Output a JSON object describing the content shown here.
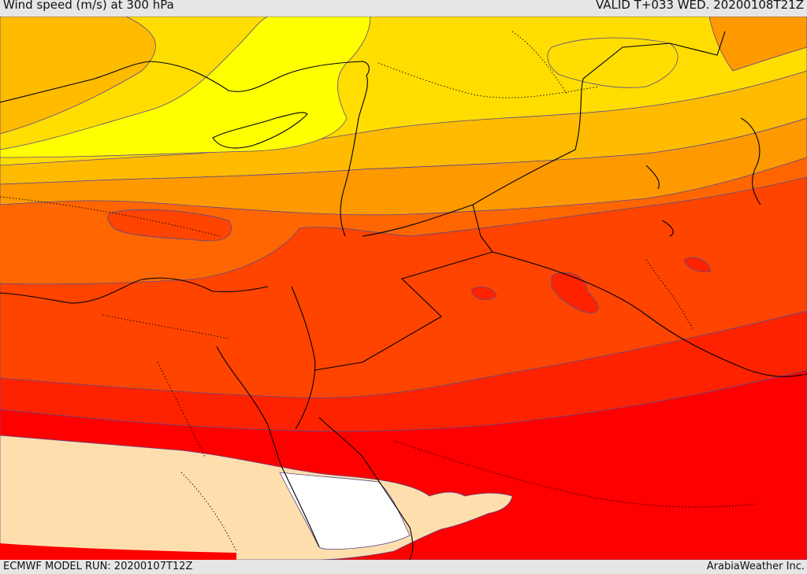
{
  "header": {
    "title": "Wind speed (m/s) at 300 hPa",
    "valid": "VALID T+033 WED. 20200108T21Z"
  },
  "footer": {
    "model_run": "ECMWF MODEL RUN: 20200107T12Z",
    "credit": "ArabiaWeather Inc."
  },
  "map": {
    "fill_colors": [
      "#ffffaa",
      "#ffff00",
      "#ffdd00",
      "#ffbb00",
      "#ff9900",
      "#ff6600",
      "#ff4400",
      "#ff2200",
      "#ff0000",
      "#ffdead",
      "#ffffff"
    ],
    "contour_color": "#5a4a8a",
    "border_color": "#000000"
  }
}
